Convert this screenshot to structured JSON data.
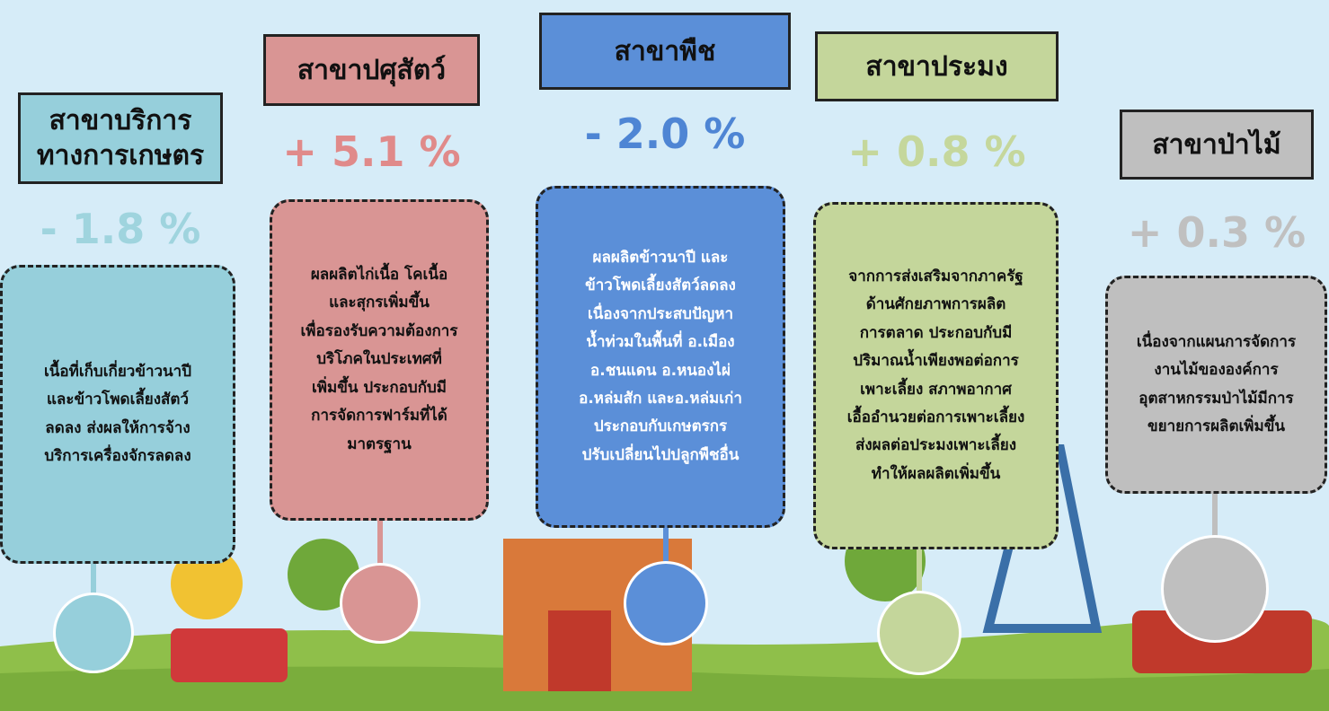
{
  "sectors": [
    {
      "title": [
        "สาขาบริการ",
        "ทางการเกษตร"
      ],
      "change": "- 1.8 %",
      "description": [
        "เนื้อที่เก็บเกี่ยวข้าวนาปี",
        "และข้าวโพดเลี้ยงสัตว์",
        "ลดลง ส่งผลให้การจ้าง",
        "บริการเครื่องจักรลดลง"
      ]
    },
    {
      "title": [
        "สาขาปศุสัตว์"
      ],
      "change": "+ 5.1 %",
      "description": [
        "ผลผลิตไก่เนื้อ โคเนื้อ",
        "และสุกรเพิ่มขึ้น",
        "เพื่อรองรับความต้องการ",
        "บริโภคในประเทศที่",
        "เพิ่มขึ้น ประกอบกับมี",
        "การจัดการฟาร์มที่ได้",
        "มาตรฐาน"
      ]
    },
    {
      "title": [
        "สาขาพืช"
      ],
      "change": "- 2.0 %",
      "description": [
        "ผลผลิตข้าวนาปี และ",
        "ข้าวโพดเลี้ยงสัตว์ลดลง",
        "เนื่องจากประสบปัญหา",
        "น้ำท่วมในพื้นที่ อ.เมือง",
        "อ.ชนแดน อ.หนองไผ่",
        "อ.หล่มสัก และอ.หล่มเก่า",
        "ประกอบกับเกษตรกร",
        "ปรับเปลี่ยนไปปลูกพืชอื่น"
      ]
    },
    {
      "title": [
        "สาขาประมง"
      ],
      "change": "+ 0.8 %",
      "description": [
        "จากการส่งเสริมจากภาครัฐ",
        "ด้านศักยภาพการผลิต",
        "การตลาด ประกอบกับมี",
        "ปริมาณน้ำเพียงพอต่อการ",
        "เพาะเลี้ยง สภาพอากาศ",
        "เอื้ออำนวยต่อการเพาะเลี้ยง",
        "ส่งผลต่อประมงเพาะเลี้ยง",
        "ทำให้ผลผลิตเพิ่มขึ้น"
      ]
    },
    {
      "title": [
        "สาขาป่าไม้"
      ],
      "change": "+ 0.3 %",
      "description": [
        "เนื่องจากแผนการจัดการ",
        "งานไม้ขององค์การ",
        "อุตสาหกรรมป่าไม้มีการ",
        "ขยายการผลิตเพิ่มขึ้น"
      ]
    }
  ]
}
